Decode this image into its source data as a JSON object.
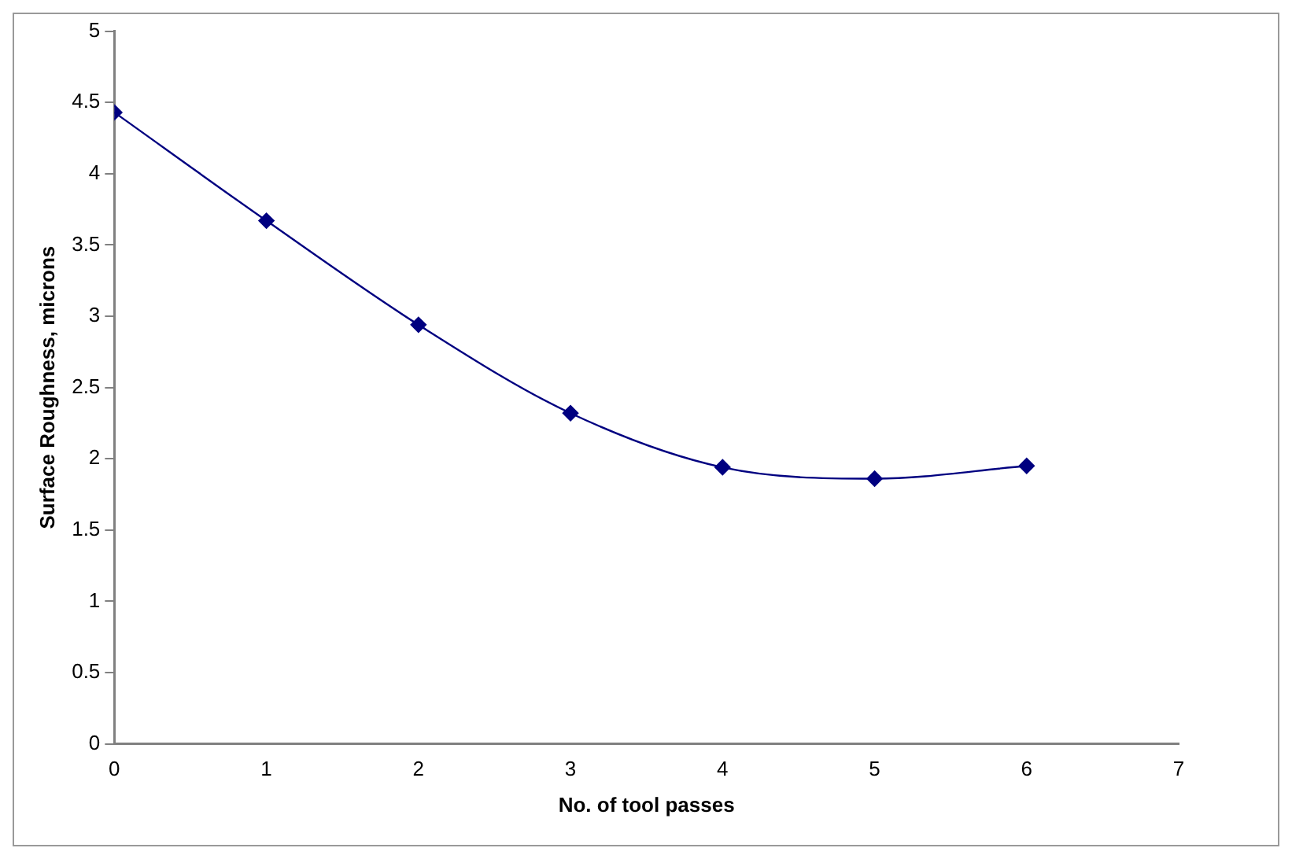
{
  "chart_data": {
    "type": "line",
    "xlabel": "No. of tool passes",
    "ylabel": "Surface Roughness, microns",
    "x": [
      0,
      1,
      2,
      3,
      4,
      5,
      6
    ],
    "series": [
      {
        "color": "#000080",
        "values": [
          4.43,
          3.67,
          2.94,
          2.32,
          1.94,
          1.86,
          1.95
        ]
      }
    ],
    "xlim": [
      0,
      7
    ],
    "xticks": [
      0,
      1,
      2,
      3,
      4,
      5,
      6,
      7
    ],
    "ylim": [
      0,
      5
    ],
    "yticks": [
      0,
      0.5,
      1,
      1.5,
      2,
      2.5,
      3,
      3.5,
      4,
      4.5,
      5
    ],
    "grid": false,
    "legend": false,
    "marker": "diamond",
    "line_style": "solid"
  }
}
